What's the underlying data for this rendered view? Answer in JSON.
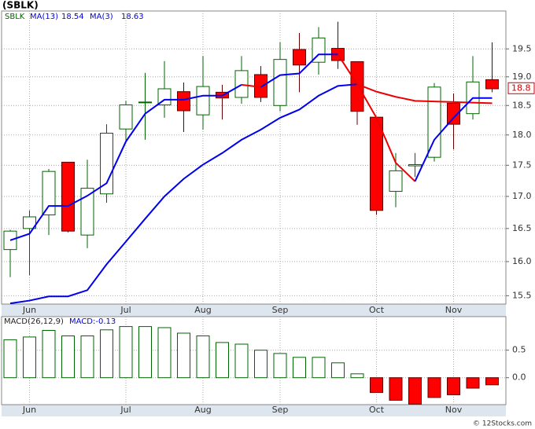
{
  "title": "(SBLK)",
  "footer": "© 12Stocks.com",
  "chart_data": [
    {
      "type": "candlestick",
      "legend": "SBLK",
      "log_scale": true,
      "grid": true,
      "categories": [
        null,
        "Jun",
        null,
        null,
        null,
        null,
        "Jul",
        null,
        null,
        null,
        "Aug",
        null,
        null,
        null,
        "Sep",
        null,
        null,
        null,
        null,
        "Oct",
        null,
        null,
        null,
        "Nov",
        null,
        null
      ],
      "open": [
        16.18,
        16.5,
        16.71,
        17.55,
        16.4,
        17.04,
        18.1,
        18.55,
        18.51,
        18.74,
        18.34,
        18.73,
        18.64,
        19.04,
        18.5,
        19.49,
        19.26,
        19.51,
        19.27,
        18.3,
        17.08,
        17.49,
        17.63,
        18.54,
        18.36,
        18.95
      ],
      "high": [
        16.48,
        16.78,
        17.44,
        17.55,
        17.59,
        18.18,
        18.58,
        19.07,
        19.28,
        18.9,
        19.37,
        18.86,
        19.37,
        19.19,
        19.62,
        19.79,
        19.9,
        20.0,
        19.27,
        18.3,
        17.7,
        17.7,
        18.89,
        18.71,
        19.37,
        19.62
      ],
      "low": [
        15.77,
        15.8,
        16.4,
        16.44,
        16.2,
        16.9,
        17.9,
        17.92,
        18.29,
        18.05,
        18.09,
        18.26,
        18.53,
        18.56,
        18.4,
        18.73,
        19.04,
        19.14,
        18.17,
        16.71,
        16.83,
        17.31,
        17.56,
        17.76,
        18.26,
        18.73
      ],
      "close": [
        16.46,
        16.68,
        17.4,
        16.46,
        17.13,
        18.03,
        18.51,
        18.56,
        18.79,
        18.41,
        18.83,
        18.63,
        19.11,
        18.64,
        19.31,
        19.21,
        19.7,
        19.29,
        18.4,
        16.78,
        17.41,
        17.51,
        18.82,
        18.18,
        18.91,
        18.79
      ],
      "up_color": "#006400",
      "down_color": "#ff0000",
      "series": [
        {
          "name": "MA(13)",
          "last": 18.54,
          "color": "#0000ee",
          "down_color": "#ee0000",
          "values": [
            15.39,
            15.43,
            15.49,
            15.49,
            15.58,
            15.96,
            16.3,
            16.65,
            17.0,
            17.28,
            17.51,
            17.7,
            17.92,
            18.09,
            18.29,
            18.43,
            18.67,
            18.84,
            18.87,
            18.74,
            18.65,
            18.58,
            18.57,
            18.56,
            18.55,
            18.54
          ]
        },
        {
          "name": "MA(3)",
          "last": 18.63,
          "color": "#0000ee",
          "down_color": "#ee0000",
          "values": [
            16.32,
            16.42,
            16.85,
            16.85,
            17.01,
            17.21,
            17.89,
            18.36,
            18.6,
            18.6,
            18.67,
            18.67,
            18.86,
            18.82,
            19.03,
            19.06,
            19.4,
            19.4,
            18.87,
            18.29,
            17.54,
            17.24,
            17.92,
            18.29,
            18.63,
            18.63
          ]
        }
      ],
      "last_price": 18.8,
      "ylim": [
        15.38,
        20.2
      ],
      "yticks": [
        15.5,
        {
          "value": 16,
          "label": "16.0"
        },
        16.5,
        {
          "value": 17,
          "label": "17.0"
        },
        17.5,
        {
          "value": 18,
          "label": "18.0"
        },
        18.5,
        {
          "value": 19,
          "label": "19.0"
        },
        19.5
      ]
    },
    {
      "type": "bar",
      "legend": "MACD(26,12,9)",
      "value_text": "MACD:-0.13",
      "grid": true,
      "categories": [
        null,
        "Jun",
        null,
        null,
        null,
        null,
        "Jul",
        null,
        null,
        null,
        "Aug",
        null,
        null,
        null,
        "Sep",
        null,
        null,
        null,
        null,
        "Oct",
        null,
        null,
        null,
        "Nov",
        null,
        null
      ],
      "values": [
        0.69,
        0.74,
        0.86,
        0.76,
        0.76,
        0.87,
        0.93,
        0.93,
        0.91,
        0.81,
        0.76,
        0.64,
        0.61,
        0.5,
        0.44,
        0.37,
        0.37,
        0.27,
        0.07,
        -0.27,
        -0.41,
        -0.48,
        -0.36,
        -0.31,
        -0.19,
        -0.13
      ],
      "up_color": "#006400",
      "down_color": "#ff0000",
      "ylim": [
        -0.49,
        1.11
      ],
      "yticks": [
        {
          "value": 0,
          "label": "0.0"
        },
        0.5
      ]
    }
  ]
}
